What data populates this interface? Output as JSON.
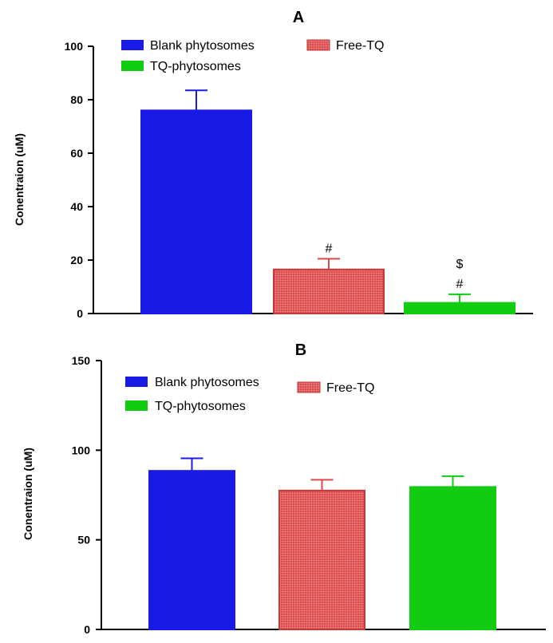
{
  "chart_data": [
    {
      "type": "bar",
      "panel": "A",
      "title": "A",
      "ylabel": "Conentraion (uM)",
      "xlabel": "",
      "ylim": [
        0,
        100
      ],
      "yticks": [
        0,
        20,
        40,
        60,
        80,
        100
      ],
      "ytick_labels": [
        "0",
        "20",
        "40",
        "60",
        "80",
        "100"
      ],
      "categories": [
        "Blank phytosomes",
        "Free-TQ",
        "TQ-phytosomes"
      ],
      "values": [
        76,
        16.5,
        4
      ],
      "errors": [
        7.5,
        4,
        3.2
      ],
      "colors": [
        "#1a1ae6",
        "#d94a4a",
        "#11cc11"
      ],
      "annotations": [
        [],
        [
          "#"
        ],
        [
          "$",
          "#"
        ]
      ],
      "legend": {
        "placement": "top",
        "entries": [
          "Blank phytosomes",
          "Free-TQ",
          "TQ-phytosomes"
        ]
      }
    },
    {
      "type": "bar",
      "panel": "B",
      "title": "B",
      "ylabel": "Conentraion (uM)",
      "xlabel": "",
      "ylim": [
        0,
        150
      ],
      "yticks": [
        0,
        50,
        100,
        150
      ],
      "ytick_labels": [
        "0",
        "50",
        "100",
        "150"
      ],
      "categories": [
        "Blank phytosomes",
        "Free-TQ",
        "TQ-phytosomes"
      ],
      "values": [
        88.5,
        77.5,
        79.5
      ],
      "errors": [
        7,
        6,
        6
      ],
      "colors": [
        "#1a1ae6",
        "#d94a4a",
        "#11cc11"
      ],
      "annotations": [
        [],
        [],
        []
      ],
      "legend": {
        "placement": "top",
        "entries": [
          "Blank phytosomes",
          "Free-TQ",
          "TQ-phytosomes"
        ]
      }
    }
  ]
}
